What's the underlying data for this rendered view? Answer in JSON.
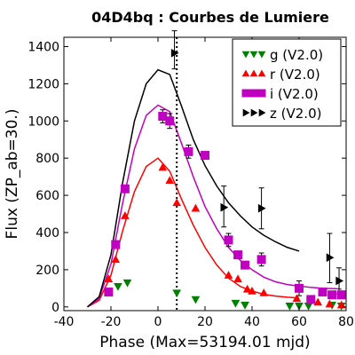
{
  "chart_data": {
    "type": "scatter",
    "title": "04D4bq : Courbes de Lumiere",
    "xlabel": "Phase (Max=53194.01 mjd)",
    "ylabel": "Flux (ZP_ab=30.)",
    "xlim": [
      -40,
      80
    ],
    "ylim": [
      -20,
      1450
    ],
    "xticks": [
      -40,
      -20,
      0,
      20,
      40,
      60,
      80
    ],
    "yticks": [
      0,
      200,
      400,
      600,
      800,
      1000,
      1200,
      1400
    ],
    "vline_x": 8,
    "legend_position": "top-right",
    "series": [
      {
        "name": "g (V2.0)",
        "marker": "triangle-down",
        "color": "#008000",
        "points": [
          [
            -21,
            80
          ],
          [
            -17,
            110
          ],
          [
            -13,
            130
          ],
          [
            8,
            75
          ],
          [
            16,
            40
          ],
          [
            33,
            20
          ],
          [
            37,
            10
          ],
          [
            56,
            5
          ],
          [
            60,
            5
          ],
          [
            64,
            5
          ],
          [
            74,
            10
          ],
          [
            78,
            5
          ]
        ],
        "curve": []
      },
      {
        "name": "r (V2.0)",
        "marker": "triangle-up",
        "color": "#ff0000",
        "points": [
          [
            -21,
            150
          ],
          [
            -18,
            255
          ],
          [
            -14,
            490
          ],
          [
            2,
            750
          ],
          [
            5,
            680
          ],
          [
            8,
            560
          ],
          [
            16,
            530
          ],
          [
            30,
            170
          ],
          [
            34,
            150
          ],
          [
            38,
            95
          ],
          [
            40,
            85
          ],
          [
            45,
            75
          ],
          [
            59,
            45
          ],
          [
            68,
            25
          ],
          [
            73,
            15
          ],
          [
            78,
            10
          ]
        ],
        "curve": [
          [
            -30,
            0
          ],
          [
            -25,
            35
          ],
          [
            -20,
            170
          ],
          [
            -15,
            410
          ],
          [
            -10,
            620
          ],
          [
            -5,
            755
          ],
          [
            0,
            800
          ],
          [
            5,
            730
          ],
          [
            10,
            580
          ],
          [
            15,
            440
          ],
          [
            20,
            320
          ],
          [
            25,
            225
          ],
          [
            30,
            155
          ],
          [
            35,
            110
          ],
          [
            40,
            85
          ],
          [
            45,
            68
          ],
          [
            50,
            58
          ],
          [
            55,
            52
          ],
          [
            60,
            48
          ]
        ]
      },
      {
        "name": "i (V2.0)",
        "marker": "square",
        "color": "#c000c0",
        "points": [
          [
            -21,
            80
          ],
          [
            -18,
            335
          ],
          [
            -14,
            635
          ],
          [
            2,
            1025
          ],
          [
            5,
            1000
          ],
          [
            13,
            835
          ],
          [
            20,
            815
          ],
          [
            30,
            360
          ],
          [
            34,
            280
          ],
          [
            37,
            225
          ],
          [
            44,
            255
          ],
          [
            60,
            100
          ],
          [
            65,
            40
          ],
          [
            70,
            80
          ],
          [
            74,
            65
          ],
          [
            78,
            65
          ]
        ],
        "curve": [
          [
            -30,
            0
          ],
          [
            -25,
            45
          ],
          [
            -20,
            230
          ],
          [
            -15,
            560
          ],
          [
            -10,
            850
          ],
          [
            -5,
            1030
          ],
          [
            0,
            1085
          ],
          [
            5,
            1050
          ],
          [
            10,
            880
          ],
          [
            15,
            700
          ],
          [
            20,
            540
          ],
          [
            25,
            420
          ],
          [
            30,
            320
          ],
          [
            35,
            250
          ],
          [
            40,
            200
          ],
          [
            45,
            160
          ],
          [
            50,
            135
          ],
          [
            55,
            120
          ],
          [
            60,
            112
          ],
          [
            65,
            105
          ],
          [
            70,
            100
          ],
          [
            75,
            98
          ],
          [
            78,
            96
          ]
        ]
      },
      {
        "name": "z (V2.0)",
        "marker": "triangle-right",
        "color": "#000000",
        "points": [
          [
            7,
            1365
          ],
          [
            28,
            535
          ],
          [
            44,
            530
          ],
          [
            73,
            265
          ],
          [
            77,
            140
          ]
        ],
        "curve": [
          [
            -30,
            0
          ],
          [
            -25,
            55
          ],
          [
            -20,
            280
          ],
          [
            -15,
            670
          ],
          [
            -10,
            1000
          ],
          [
            -5,
            1200
          ],
          [
            0,
            1275
          ],
          [
            5,
            1250
          ],
          [
            10,
            1080
          ],
          [
            15,
            900
          ],
          [
            20,
            760
          ],
          [
            25,
            650
          ],
          [
            30,
            560
          ],
          [
            35,
            490
          ],
          [
            40,
            430
          ],
          [
            45,
            385
          ],
          [
            50,
            350
          ],
          [
            55,
            320
          ],
          [
            60,
            300
          ]
        ]
      }
    ],
    "error_bars": [
      {
        "x": 7,
        "lo": 1280,
        "hi": 1485
      },
      {
        "x": 28,
        "lo": 430,
        "hi": 650
      },
      {
        "x": 44,
        "lo": 420,
        "hi": 640
      },
      {
        "x": 73,
        "lo": 130,
        "hi": 395
      },
      {
        "x": 77,
        "lo": 70,
        "hi": 210
      },
      {
        "x": 2,
        "lo": 990,
        "hi": 1060
      },
      {
        "x": 5,
        "lo": 960,
        "hi": 1040
      },
      {
        "x": 13,
        "lo": 800,
        "hi": 870
      },
      {
        "x": 30,
        "lo": 325,
        "hi": 395
      },
      {
        "x": 44,
        "lo": 220,
        "hi": 290
      },
      {
        "x": 60,
        "lo": 60,
        "hi": 140
      }
    ]
  }
}
